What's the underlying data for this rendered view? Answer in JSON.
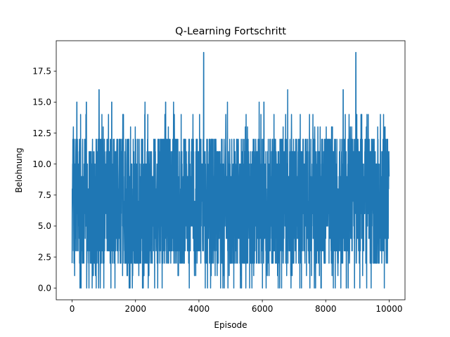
{
  "chart_data": {
    "type": "line",
    "title": "Q-Learning Fortschritt",
    "xlabel": "Episode",
    "ylabel": "Belohnung",
    "xlim": [
      -500,
      10500
    ],
    "ylim": [
      -0.95,
      19.95
    ],
    "xticks": [
      0,
      2000,
      4000,
      6000,
      8000,
      10000
    ],
    "xtick_labels": [
      "0",
      "2000",
      "4000",
      "6000",
      "8000",
      "10000"
    ],
    "yticks": [
      0.0,
      2.5,
      5.0,
      7.5,
      10.0,
      12.5,
      15.0,
      17.5
    ],
    "ytick_labels": [
      "0.0",
      "2.5",
      "5.0",
      "7.5",
      "10.0",
      "12.5",
      "15.0",
      "17.5"
    ],
    "grid": false,
    "series": [
      {
        "color": "#1f77b4",
        "episodes": 10000,
        "band_low": 2,
        "band_high": 12,
        "peaks": [
          {
            "x": 150,
            "y": 15
          },
          {
            "x": 250,
            "y": 15
          },
          {
            "x": 450,
            "y": 15
          },
          {
            "x": 850,
            "y": 16
          },
          {
            "x": 1000,
            "y": 16
          },
          {
            "x": 1250,
            "y": 15
          },
          {
            "x": 2300,
            "y": 15
          },
          {
            "x": 2950,
            "y": 15
          },
          {
            "x": 3200,
            "y": 15
          },
          {
            "x": 4150,
            "y": 19
          },
          {
            "x": 4900,
            "y": 15
          },
          {
            "x": 5900,
            "y": 15
          },
          {
            "x": 6050,
            "y": 15
          },
          {
            "x": 6800,
            "y": 16
          },
          {
            "x": 8550,
            "y": 16
          },
          {
            "x": 8950,
            "y": 19
          },
          {
            "x": 9300,
            "y": 14
          }
        ],
        "troughs": [
          {
            "x": 250,
            "y": 0
          },
          {
            "x": 1000,
            "y": 0
          },
          {
            "x": 1800,
            "y": 0
          },
          {
            "x": 1900,
            "y": 0
          },
          {
            "x": 2400,
            "y": 0
          },
          {
            "x": 2700,
            "y": 0
          },
          {
            "x": 4200,
            "y": 0
          },
          {
            "x": 4800,
            "y": 0
          },
          {
            "x": 5100,
            "y": 0
          },
          {
            "x": 5600,
            "y": 0
          },
          {
            "x": 6500,
            "y": 0
          },
          {
            "x": 7500,
            "y": 0
          },
          {
            "x": 8300,
            "y": 0
          },
          {
            "x": 8650,
            "y": 0
          }
        ]
      }
    ]
  }
}
